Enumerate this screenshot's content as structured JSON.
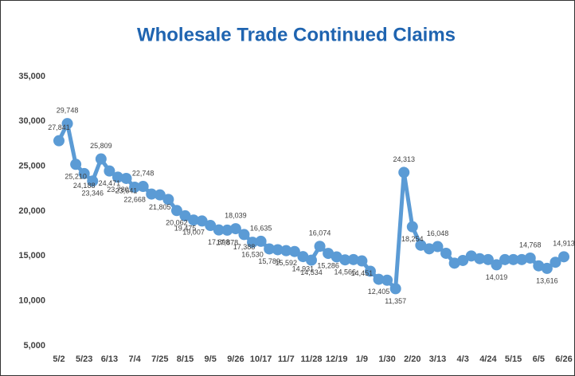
{
  "chart_data": {
    "type": "line",
    "title": "Wholesale Trade Continued Claims",
    "categories": [
      "5/2",
      null,
      null,
      "5/23",
      null,
      null,
      "6/13",
      null,
      null,
      "7/4",
      null,
      null,
      "7/25",
      null,
      null,
      "8/15",
      null,
      null,
      "9/5",
      null,
      null,
      "9/26",
      null,
      null,
      "10/17",
      null,
      null,
      "11/7",
      null,
      null,
      "11/28",
      null,
      null,
      "12/19",
      null,
      null,
      "1/9",
      null,
      null,
      "1/30",
      null,
      null,
      "2/20",
      null,
      null,
      "3/13",
      null,
      null,
      "4/3",
      null,
      null,
      "4/24",
      null,
      null,
      "5/15",
      null,
      null,
      "6/5",
      null,
      null,
      "6/26"
    ],
    "series": [
      {
        "name": "Continued Claims",
        "color": "#5b9bd5",
        "values": [
          27841,
          29748,
          25210,
          24188,
          23346,
          25809,
          24471,
          23780,
          23641,
          22668,
          22748,
          21900,
          21805,
          21300,
          20062,
          19475,
          19007,
          18900,
          18400,
          17898,
          17878,
          18039,
          17388,
          16530,
          16635,
          15789,
          15700,
          15592,
          15500,
          14931,
          14534,
          16074,
          15286,
          14900,
          14566,
          14600,
          14451,
          13300,
          12405,
          12300,
          11357,
          24313,
          18254,
          16200,
          15800,
          16048,
          15300,
          14200,
          14500,
          15000,
          14700,
          14600,
          14019,
          14600,
          14600,
          14600,
          14768,
          13900,
          13616,
          14300,
          14913
        ],
        "value_labels": [
          "27,841",
          "29,748",
          "25,210",
          "24,188",
          "23,346",
          "25,809",
          "24,471",
          "23,780",
          "23,641",
          "22,668",
          "22,748",
          null,
          "21,805",
          null,
          "20,062",
          "19,475",
          "19,007",
          null,
          null,
          "17,898",
          "17,878",
          "18,039",
          "17,388",
          "16,530",
          "16,635",
          "15,789",
          null,
          "15,592",
          null,
          "14,931",
          "14,534",
          "16,074",
          "15,286",
          null,
          "14,566",
          null,
          "14,451",
          null,
          "12,405",
          null,
          "11,357",
          "24,313",
          "18,254",
          null,
          null,
          "16,048",
          null,
          null,
          null,
          null,
          null,
          null,
          "14,019",
          null,
          null,
          null,
          "14,768",
          null,
          "13,616",
          null,
          "14,913"
        ]
      }
    ],
    "ylim": [
      5000,
      35000
    ],
    "yticks": [
      {
        "value": 5000,
        "label": "5,000"
      },
      {
        "value": 10000,
        "label": "10,000"
      },
      {
        "value": 15000,
        "label": "15,000"
      },
      {
        "value": 20000,
        "label": "20,000"
      },
      {
        "value": 25000,
        "label": "25,000"
      },
      {
        "value": 30000,
        "label": "30,000"
      },
      {
        "value": 35000,
        "label": "35,000"
      }
    ],
    "grid": false
  }
}
